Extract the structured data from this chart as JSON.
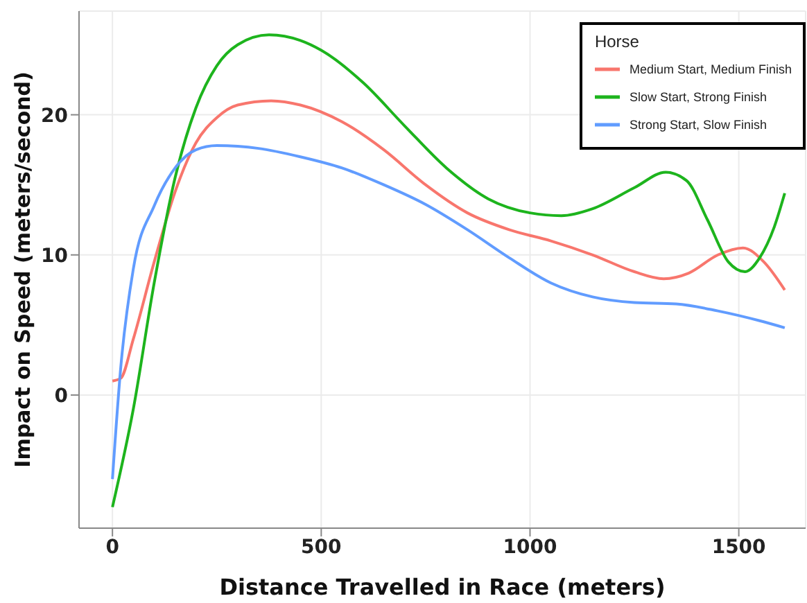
{
  "chart_data": {
    "type": "line",
    "xlabel": "Distance Travelled in Race (meters)",
    "ylabel": "Impact on Speed (meters/second)",
    "legend_title": "Horse",
    "legend": "top right",
    "grid": true,
    "marker": "none",
    "line_style": "solid",
    "xlim": [
      -80,
      1660
    ],
    "ylim": [
      -9.5,
      27.4
    ],
    "xticks": [
      0,
      500,
      1000,
      1500
    ],
    "yticks": [
      0,
      10,
      20
    ],
    "series": [
      {
        "name": "Medium Start, Medium Finish",
        "color": "#f8766d",
        "x": [
          0,
          20,
          50,
          100,
          150,
          200,
          250,
          300,
          380,
          450,
          550,
          650,
          750,
          850,
          950,
          1050,
          1150,
          1250,
          1320,
          1380,
          1450,
          1510,
          1560,
          1610
        ],
        "values": [
          1,
          1.2,
          4,
          9.5,
          14.5,
          18,
          19.8,
          20.7,
          21,
          20.7,
          19.5,
          17.5,
          15,
          13,
          11.8,
          11,
          10,
          8.8,
          8.3,
          8.7,
          10,
          10.5,
          9.5,
          7.5
        ]
      },
      {
        "name": "Slow Start, Strong Finish",
        "color": "#1db41d",
        "x": [
          0,
          50,
          100,
          150,
          200,
          250,
          300,
          375,
          450,
          500,
          600,
          700,
          800,
          900,
          1000,
          1075,
          1150,
          1250,
          1325,
          1375,
          1425,
          1475,
          1515,
          1550,
          1585,
          1610
        ],
        "values": [
          -8,
          -1,
          8,
          15.5,
          20.5,
          23.5,
          25,
          25.7,
          25.3,
          24.6,
          22.3,
          19.2,
          16.2,
          14,
          13,
          12.8,
          13.3,
          14.8,
          15.9,
          15.3,
          12.5,
          9.5,
          8.8,
          9.8,
          12,
          14.4
        ]
      },
      {
        "name": "Strong Start, Slow Finish",
        "color": "#619cff",
        "x": [
          0,
          20,
          50,
          100,
          150,
          200,
          250,
          350,
          450,
          550,
          650,
          750,
          850,
          950,
          1050,
          1150,
          1250,
          1350,
          1450,
          1550,
          1610
        ],
        "values": [
          -6,
          2,
          9,
          13.5,
          16.2,
          17.5,
          17.8,
          17.6,
          17,
          16.2,
          15,
          13.6,
          11.8,
          9.8,
          8,
          7,
          6.6,
          6.5,
          6,
          5.3,
          4.8
        ]
      }
    ]
  }
}
